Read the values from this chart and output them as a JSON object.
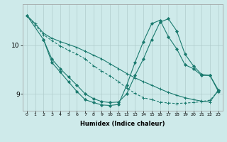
{
  "xlabel": "Humidex (Indice chaleur)",
  "background_color": "#ceeaea",
  "grid_color": "#b0cccc",
  "line_color": "#1a7a6e",
  "x_ticks": [
    0,
    1,
    2,
    3,
    4,
    5,
    6,
    7,
    8,
    9,
    10,
    11,
    12,
    13,
    14,
    15,
    16,
    17,
    18,
    19,
    20,
    21,
    22,
    23
  ],
  "y_ticks": [
    9,
    10
  ],
  "ylim": [
    8.65,
    10.85
  ],
  "xlim": [
    -0.5,
    23.5
  ],
  "series1_x": [
    0,
    1,
    2,
    3,
    4,
    5,
    6,
    7,
    8,
    9,
    10,
    11,
    12,
    13,
    14,
    15,
    16,
    17,
    18,
    19,
    20,
    21,
    22,
    23
  ],
  "series1_y": [
    10.62,
    10.45,
    10.25,
    10.15,
    10.08,
    10.02,
    9.96,
    9.88,
    9.8,
    9.72,
    9.62,
    9.52,
    9.42,
    9.33,
    9.25,
    9.18,
    9.1,
    9.03,
    8.97,
    8.92,
    8.88,
    8.85,
    8.83,
    9.08
  ],
  "series2_x": [
    0,
    1,
    2,
    3,
    4,
    5,
    6,
    7,
    8,
    9,
    10,
    11,
    12,
    13,
    14,
    15,
    16,
    17,
    18,
    19,
    20,
    21,
    22,
    23
  ],
  "series2_y": [
    10.62,
    10.42,
    10.22,
    10.1,
    9.99,
    9.9,
    9.82,
    9.72,
    9.58,
    9.47,
    9.37,
    9.25,
    9.12,
    9.01,
    8.92,
    8.88,
    8.83,
    8.81,
    8.8,
    8.81,
    8.82,
    8.84,
    8.87,
    9.05
  ],
  "series3_x": [
    0,
    2,
    3,
    4,
    5,
    6,
    7,
    8,
    9,
    10,
    11,
    12,
    13,
    14,
    15,
    16,
    17,
    18,
    19,
    20,
    21,
    22,
    23
  ],
  "series3_y": [
    10.62,
    10.12,
    9.72,
    9.52,
    9.35,
    9.18,
    9.0,
    8.9,
    8.84,
    8.82,
    8.83,
    9.0,
    9.38,
    9.72,
    10.12,
    10.48,
    10.55,
    10.3,
    9.82,
    9.58,
    9.4,
    9.38,
    9.08
  ],
  "series4_x": [
    2,
    3,
    4,
    5,
    6,
    7,
    8,
    9,
    10,
    11,
    12,
    13,
    14,
    15,
    16,
    17,
    18,
    19,
    20,
    21,
    22,
    23
  ],
  "series4_y": [
    10.12,
    9.65,
    9.45,
    9.25,
    9.05,
    8.88,
    8.82,
    8.77,
    8.76,
    8.78,
    9.18,
    9.65,
    10.08,
    10.45,
    10.52,
    10.18,
    9.93,
    9.6,
    9.52,
    9.38,
    9.38,
    9.05
  ]
}
